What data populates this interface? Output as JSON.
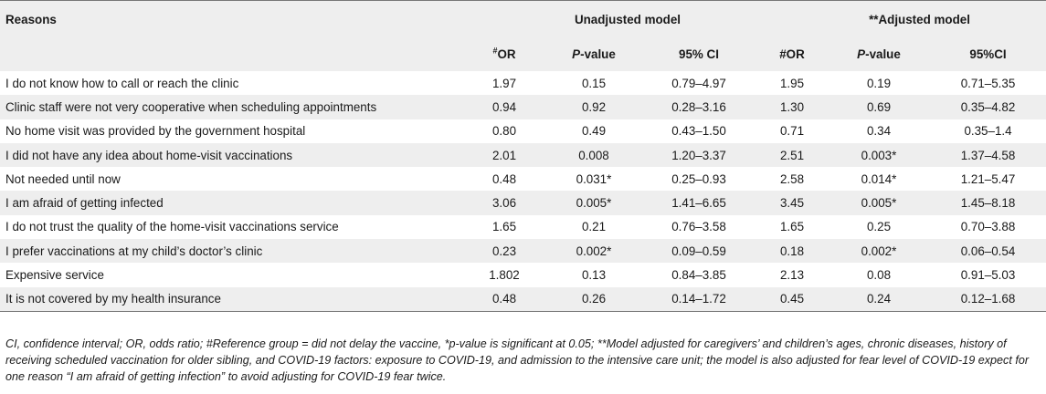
{
  "table": {
    "header": {
      "reasons_label": "Reasons",
      "unadjusted_label": "Unadjusted model",
      "adjusted_label": "**Adjusted model",
      "unadjusted_cols": {
        "or_sup": "#",
        "or": "OR",
        "p_italic": "P",
        "p_rest": "-value",
        "ci": "95% CI"
      },
      "adjusted_cols": {
        "or": "#OR",
        "p_italic": "P",
        "p_rest": "-value",
        "ci": "95%CI"
      }
    },
    "rows": [
      {
        "reason": "I do not know how to call or reach the clinic",
        "u_or": "1.97",
        "u_p": "0.15",
        "u_ci": "0.79–4.97",
        "a_or": "1.95",
        "a_p": "0.19",
        "a_ci": "0.71–5.35"
      },
      {
        "reason": "Clinic staff were not very cooperative when scheduling appointments",
        "u_or": "0.94",
        "u_p": "0.92",
        "u_ci": "0.28–3.16",
        "a_or": "1.30",
        "a_p": "0.69",
        "a_ci": "0.35–4.82"
      },
      {
        "reason": "No home visit was provided by the government hospital",
        "u_or": "0.80",
        "u_p": "0.49",
        "u_ci": "0.43–1.50",
        "a_or": "0.71",
        "a_p": "0.34",
        "a_ci": "0.35–1.4"
      },
      {
        "reason": "I did not have any idea about home-visit vaccinations",
        "u_or": "2.01",
        "u_p": "0.008",
        "u_ci": "1.20–3.37",
        "a_or": "2.51",
        "a_p": "0.003*",
        "a_ci": "1.37–4.58"
      },
      {
        "reason": "Not needed until now",
        "u_or": "0.48",
        "u_p": "0.031*",
        "u_ci": "0.25–0.93",
        "a_or": "2.58",
        "a_p": "0.014*",
        "a_ci": "1.21–5.47"
      },
      {
        "reason": "I am afraid of getting infected",
        "u_or": "3.06",
        "u_p": "0.005*",
        "u_ci": "1.41–6.65",
        "a_or": "3.45",
        "a_p": "0.005*",
        "a_ci": "1.45–8.18"
      },
      {
        "reason": "I do not trust the quality of the home-visit vaccinations service",
        "u_or": "1.65",
        "u_p": "0.21",
        "u_ci": "0.76–3.58",
        "a_or": "1.65",
        "a_p": "0.25",
        "a_ci": "0.70–3.88"
      },
      {
        "reason": "I prefer vaccinations at my child’s doctor’s clinic",
        "u_or": "0.23",
        "u_p": "0.002*",
        "u_ci": "0.09–0.59",
        "a_or": "0.18",
        "a_p": "0.002*",
        "a_ci": "0.06–0.54"
      },
      {
        "reason": "Expensive service",
        "u_or": "1.802",
        "u_p": "0.13",
        "u_ci": "0.84–3.85",
        "a_or": "2.13",
        "a_p": "0.08",
        "a_ci": "0.91–5.03"
      },
      {
        "reason": "It is not covered by my health insurance",
        "u_or": "0.48",
        "u_p": "0.26",
        "u_ci": "0.14–1.72",
        "a_or": "0.45",
        "a_p": "0.24",
        "a_ci": "0.12–1.68"
      }
    ]
  },
  "footnote": "CI, confidence interval; OR, odds ratio; #Reference group = did not delay the vaccine, *p-value is significant at 0.05; **Model adjusted for caregivers’ and children’s ages, chronic diseases, history of receiving scheduled vaccination for older sibling, and COVID-19 factors: exposure to COVID-19, and admission to the intensive care unit; the model is also adjusted for fear level of COVID-19 expect for one reason “I am afraid of getting infection” to avoid adjusting for COVID-19 fear twice."
}
